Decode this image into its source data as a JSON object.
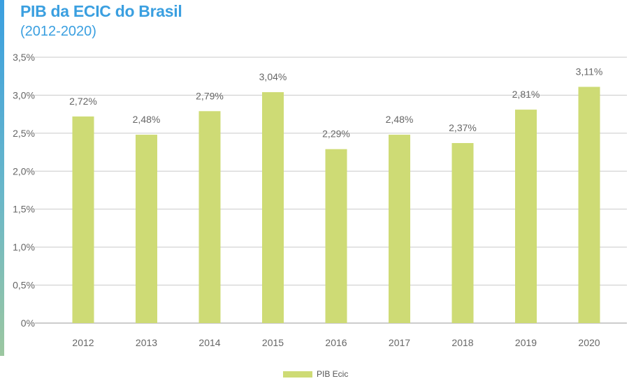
{
  "colors": {
    "accent": "#3a9fe0",
    "bar": "#cedb75",
    "grid": "#c9c9c9",
    "axis_text": "#666666"
  },
  "chart_data": {
    "type": "bar",
    "title": "PIB da ECIC do Brasil",
    "subtitle": "(2012-2020)",
    "xlabel": "",
    "ylabel": "",
    "ylim": [
      0,
      3.5
    ],
    "y_ticks": [
      0,
      0.5,
      1.0,
      1.5,
      2.0,
      2.5,
      3.0,
      3.5
    ],
    "y_tick_labels": [
      "0%",
      "0,5%",
      "1,0%",
      "1,5%",
      "2,0%",
      "2,5%",
      "3,0%",
      "3,5%"
    ],
    "grid": true,
    "legend_position": "bottom-center",
    "categories": [
      "2012",
      "2013",
      "2014",
      "2015",
      "2016",
      "2017",
      "2018",
      "2019",
      "2020"
    ],
    "series": [
      {
        "name": "PIB Ecic",
        "values": [
          2.72,
          2.48,
          2.79,
          3.04,
          2.29,
          2.48,
          2.37,
          2.81,
          3.11
        ],
        "data_labels": [
          "2,72%",
          "2,48%",
          "2,79%",
          "3,04%",
          "2,29%",
          "2,48%",
          "2,37%",
          "2,81%",
          "3,11%"
        ]
      }
    ]
  }
}
